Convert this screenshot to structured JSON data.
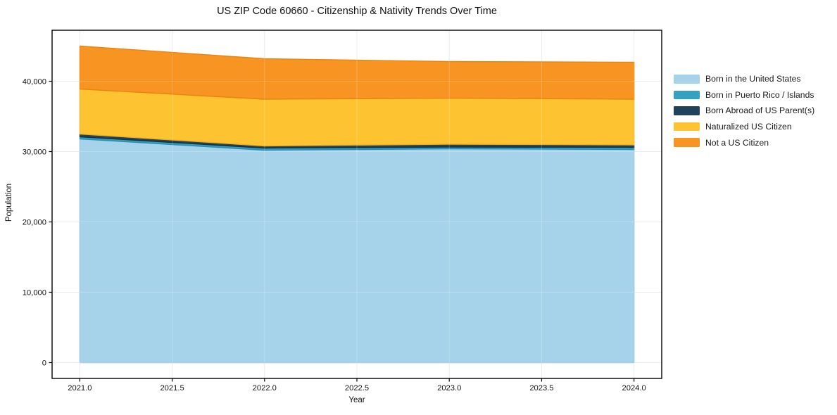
{
  "chart_data": {
    "type": "area",
    "stacked": true,
    "title": "US ZIP Code 60660 - Citizenship & Nativity Trends Over Time",
    "xlabel": "Year",
    "ylabel": "Population",
    "x": [
      2021,
      2022,
      2023,
      2024
    ],
    "series": [
      {
        "name": "Born in the United States",
        "values": [
          31800,
          30200,
          30400,
          30300
        ],
        "color": "#a7d3ea",
        "edge_color": "#8fc3de"
      },
      {
        "name": "Born in Puerto Rico / Islands",
        "values": [
          300,
          300,
          250,
          300
        ],
        "color": "#35a1c2",
        "edge_color": "#2a8db0"
      },
      {
        "name": "Born Abroad of US Parent(s)",
        "values": [
          400,
          300,
          400,
          350
        ],
        "color": "#21425a",
        "edge_color": "#16303f"
      },
      {
        "name": "Naturalized US Citizen",
        "values": [
          6400,
          6650,
          6550,
          6500
        ],
        "color": "#fdc330",
        "edge_color": "#eeb01d"
      },
      {
        "name": "Not a US Citizen",
        "values": [
          6100,
          5750,
          5200,
          5250
        ],
        "color": "#f79422",
        "edge_color": "#e98410"
      }
    ],
    "stacked_totals": [
      45000,
      43200,
      42800,
      42700
    ],
    "xticks": [
      2021.0,
      2021.5,
      2022.0,
      2022.5,
      2023.0,
      2023.5,
      2024.0
    ],
    "xtick_labels": [
      "2021.0",
      "2021.5",
      "2022.0",
      "2022.5",
      "2023.0",
      "2023.5",
      "2024.0"
    ],
    "yticks": [
      0,
      10000,
      20000,
      30000,
      40000
    ],
    "ytick_labels": [
      "0",
      "10,000",
      "20,000",
      "30,000",
      "40,000"
    ],
    "xlim": [
      2020.85,
      2024.15
    ],
    "ylim": [
      -2250,
      47250
    ],
    "grid": true,
    "grid_color": "#e7e7e7",
    "frame_color": "#000000",
    "legend_position": "right"
  }
}
